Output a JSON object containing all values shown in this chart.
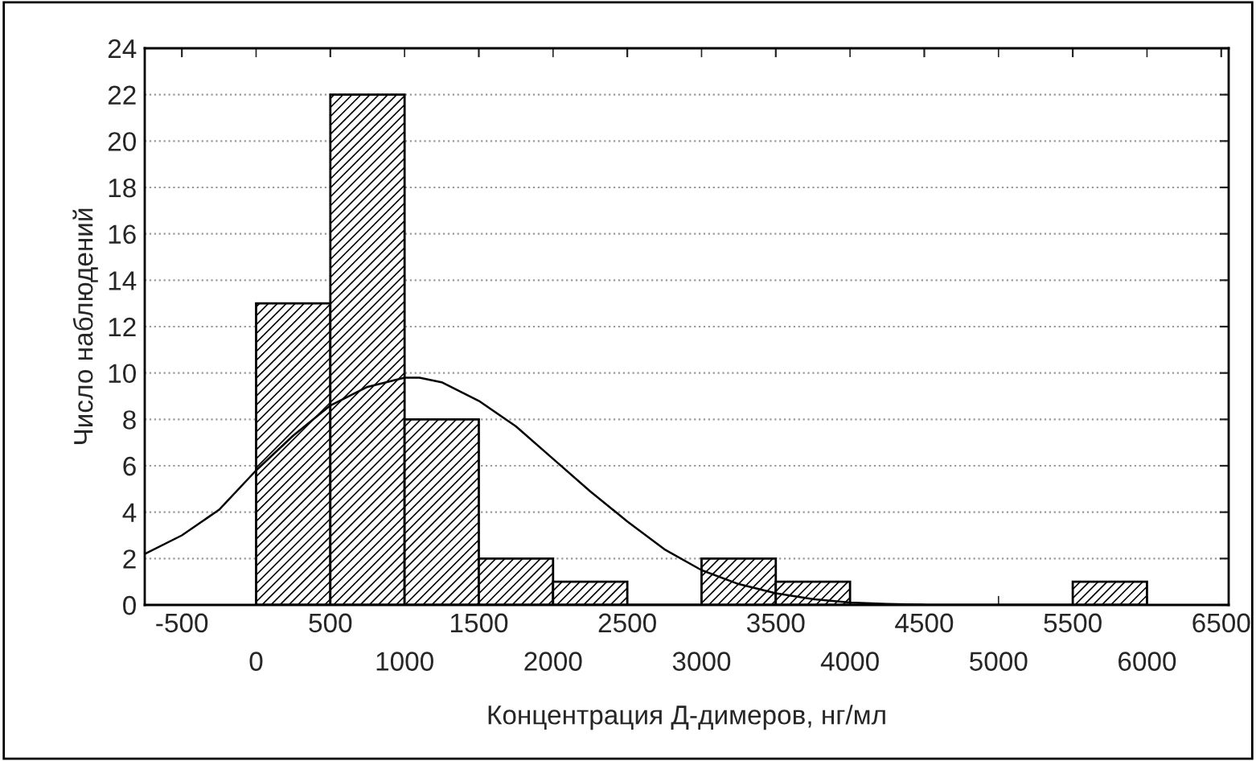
{
  "chart_data": {
    "type": "histogram",
    "xlabel": "Концентрация Д-димеров, нг/мл",
    "ylabel": "Число наблюдений",
    "bins": [
      0,
      500,
      1000,
      1500,
      2000,
      2500,
      3000,
      3500,
      4000,
      4500,
      5000,
      5500,
      6000
    ],
    "values": [
      13,
      22,
      8,
      2,
      1,
      0,
      2,
      1,
      0,
      0,
      0,
      1
    ],
    "color": "#000000",
    "series": [
      {
        "type": "line",
        "color": "#000000",
        "x": [
          -750,
          -500,
          -250,
          0,
          250,
          500,
          750,
          1000,
          1100,
          1250,
          1500,
          1750,
          2000,
          2250,
          2500,
          2750,
          3000,
          3250,
          3500,
          3750,
          4000,
          4250,
          4500
        ],
        "values": [
          2.2,
          3.0,
          4.1,
          5.8,
          7.3,
          8.6,
          9.4,
          9.8,
          9.8,
          9.6,
          8.8,
          7.7,
          6.3,
          4.9,
          3.6,
          2.4,
          1.5,
          0.9,
          0.5,
          0.25,
          0.1,
          0.04,
          0.01
        ]
      }
    ],
    "xlim": [
      -750,
      6550
    ],
    "xticks": [
      -500,
      500,
      1500,
      2500,
      3500,
      4500,
      5500,
      6500
    ],
    "x2lim": [
      -750,
      6550
    ],
    "x2ticks": [
      0,
      1000,
      2000,
      3000,
      4000,
      5000,
      6000
    ],
    "ylim": [
      0,
      24
    ],
    "yticks": [
      0,
      2,
      4,
      6,
      8,
      10,
      12,
      14,
      16,
      18,
      20,
      22,
      24
    ],
    "grid": "y",
    "legend": false
  }
}
